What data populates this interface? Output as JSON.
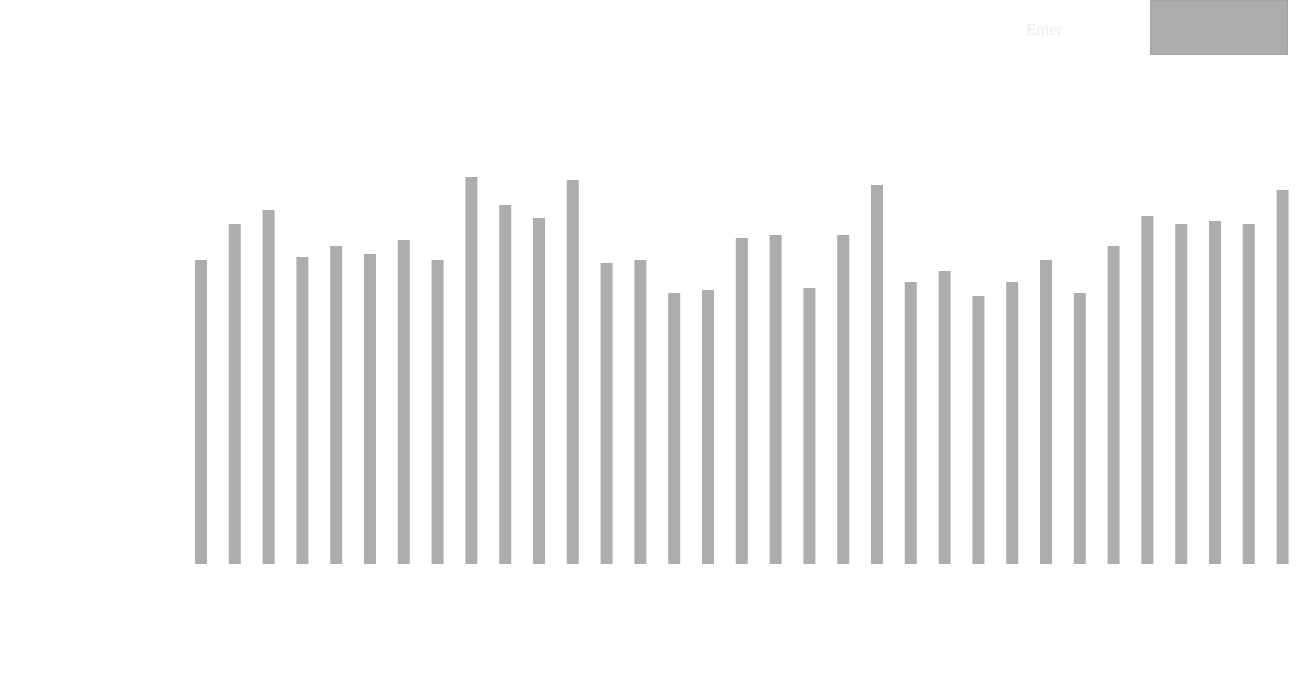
{
  "toolbar": {
    "label": "Enter"
  },
  "chart_data": {
    "type": "bar",
    "color": "#adadad",
    "ylim": [
      0,
      400
    ],
    "values": [
      304,
      340,
      354,
      307,
      318,
      310,
      324,
      304,
      387,
      359,
      346,
      384,
      301,
      304,
      271,
      274,
      326,
      329,
      276,
      329,
      379,
      282,
      293,
      268,
      282,
      304,
      271,
      318,
      348,
      340,
      343,
      340,
      374
    ]
  }
}
